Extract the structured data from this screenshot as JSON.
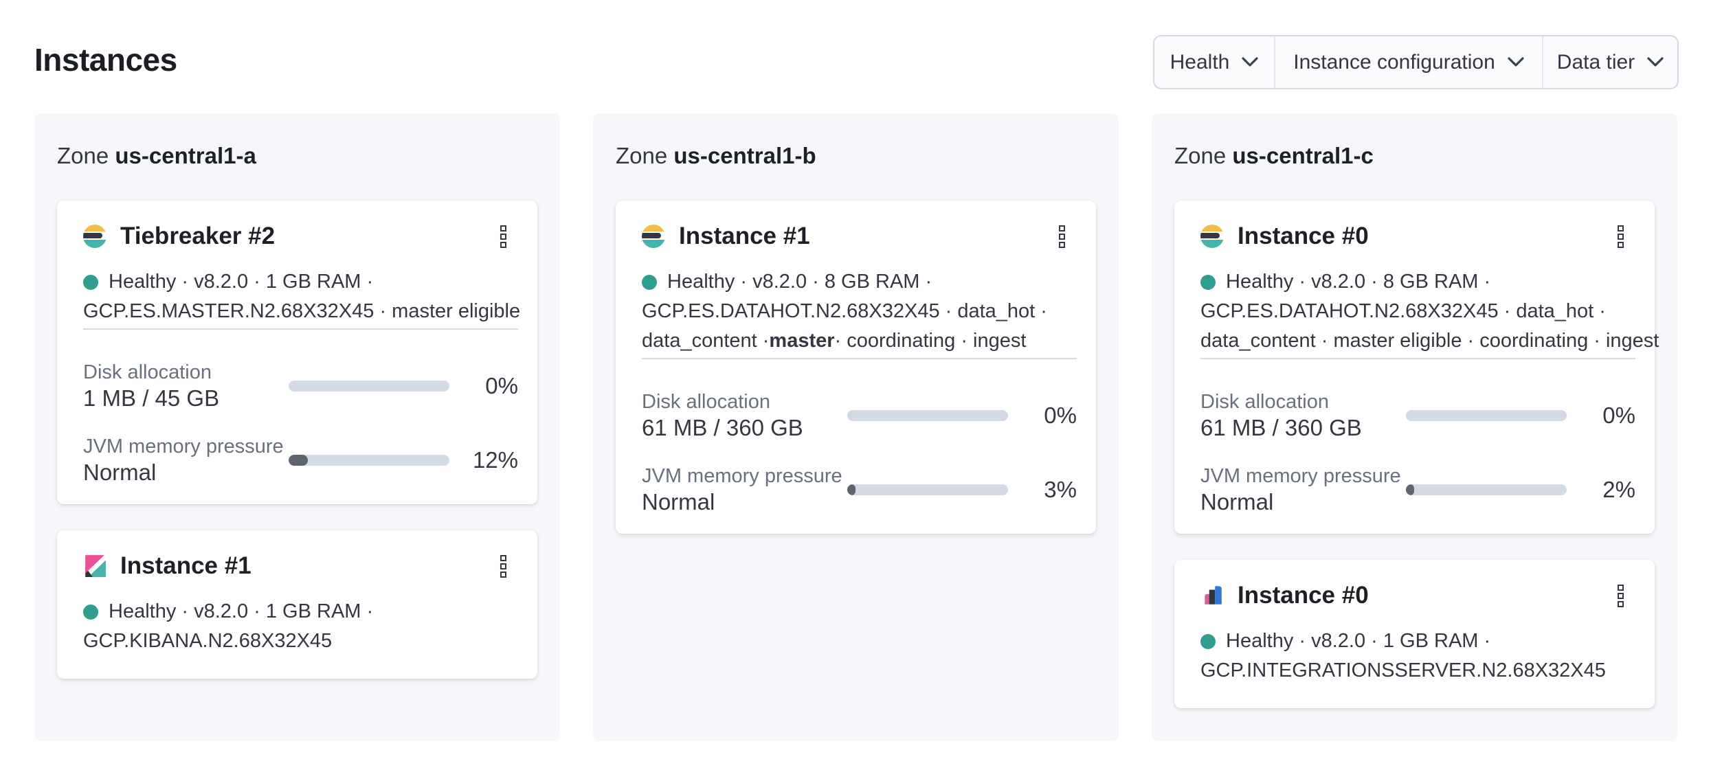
{
  "page": {
    "title": "Instances"
  },
  "filters": [
    {
      "id": "health",
      "label": "Health"
    },
    {
      "id": "instance-configuration",
      "label": "Instance configuration"
    },
    {
      "id": "data-tier",
      "label": "Data tier"
    }
  ],
  "colors": {
    "accent_teal_healthy": "#2f9e8f",
    "zone_panel_bg": "#f5f7fa",
    "progress_track": "#d3dae6",
    "progress_fill": "#5e646e",
    "text_dark": "#1d2026",
    "text_body": "#343741",
    "text_subdued": "#69707d",
    "es_logo": {
      "yellow": "#f1be48",
      "dark": "#343741",
      "teal": "#45b5aa"
    },
    "kibana_logo": {
      "pink": "#ee5097",
      "dark": "#2e3138",
      "teal": "#45b5aa"
    },
    "integrations_logo": {
      "pink": "#dd5a96",
      "dark": "#32353d",
      "blue": "#3376d3"
    }
  },
  "zones": [
    {
      "label": "Zone",
      "name": "us-central1-a",
      "cards": [
        {
          "icon": "elasticsearch-logo",
          "title": "Tiebreaker #2",
          "health": "Healthy",
          "info_lines": [
            [
              {
                "text": "Healthy · v8.2.0 · 1 GB RAM ·"
              }
            ],
            [
              {
                "text": "GCP.ES.MASTER.N2.68X32X45 · master eligible"
              }
            ]
          ],
          "metrics": [
            {
              "label": "Disk allocation",
              "value": "1 MB / 45 GB",
              "percent": 0,
              "percent_label": "0%"
            },
            {
              "label": "JVM memory pressure",
              "value": "Normal",
              "percent": 12,
              "percent_label": "12%"
            }
          ]
        },
        {
          "icon": "kibana-logo",
          "title": "Instance #1",
          "health": "Healthy",
          "info_lines": [
            [
              {
                "text": "Healthy · v8.2.0 · 1 GB RAM ·"
              }
            ],
            [
              {
                "text": "GCP.KIBANA.N2.68X32X45"
              }
            ]
          ],
          "metrics": []
        }
      ]
    },
    {
      "label": "Zone",
      "name": "us-central1-b",
      "cards": [
        {
          "icon": "elasticsearch-logo",
          "title": "Instance #1",
          "health": "Healthy",
          "info_lines": [
            [
              {
                "text": "Healthy · v8.2.0 · 8 GB RAM ·"
              }
            ],
            [
              {
                "text": "GCP.ES.DATAHOT.N2.68X32X45 · data_hot ·"
              }
            ],
            [
              {
                "text": "data_content · "
              },
              {
                "text": "master",
                "bold": true
              },
              {
                "text": " · coordinating · ingest"
              }
            ]
          ],
          "metrics": [
            {
              "label": "Disk allocation",
              "value": "61 MB / 360 GB",
              "percent": 0,
              "percent_label": "0%"
            },
            {
              "label": "JVM memory pressure",
              "value": "Normal",
              "percent": 3,
              "percent_label": "3%"
            }
          ]
        }
      ]
    },
    {
      "label": "Zone",
      "name": "us-central1-c",
      "cards": [
        {
          "icon": "elasticsearch-logo",
          "title": "Instance #0",
          "health": "Healthy",
          "info_lines": [
            [
              {
                "text": "Healthy · v8.2.0 · 8 GB RAM ·"
              }
            ],
            [
              {
                "text": "GCP.ES.DATAHOT.N2.68X32X45 · data_hot ·"
              }
            ],
            [
              {
                "text": "data_content · master eligible · coordinating · ingest"
              }
            ]
          ],
          "metrics": [
            {
              "label": "Disk allocation",
              "value": "61 MB / 360 GB",
              "percent": 0,
              "percent_label": "0%"
            },
            {
              "label": "JVM memory pressure",
              "value": "Normal",
              "percent": 2,
              "percent_label": "2%"
            }
          ]
        },
        {
          "icon": "integrations-server-logo",
          "title": "Instance #0",
          "health": "Healthy",
          "info_lines": [
            [
              {
                "text": "Healthy · v8.2.0 · 1 GB RAM ·"
              }
            ],
            [
              {
                "text": "GCP.INTEGRATIONSSERVER.N2.68X32X45"
              }
            ]
          ],
          "metrics": []
        }
      ]
    }
  ],
  "zone_layout": {
    "lefts": [
      50,
      863,
      1676
    ]
  }
}
